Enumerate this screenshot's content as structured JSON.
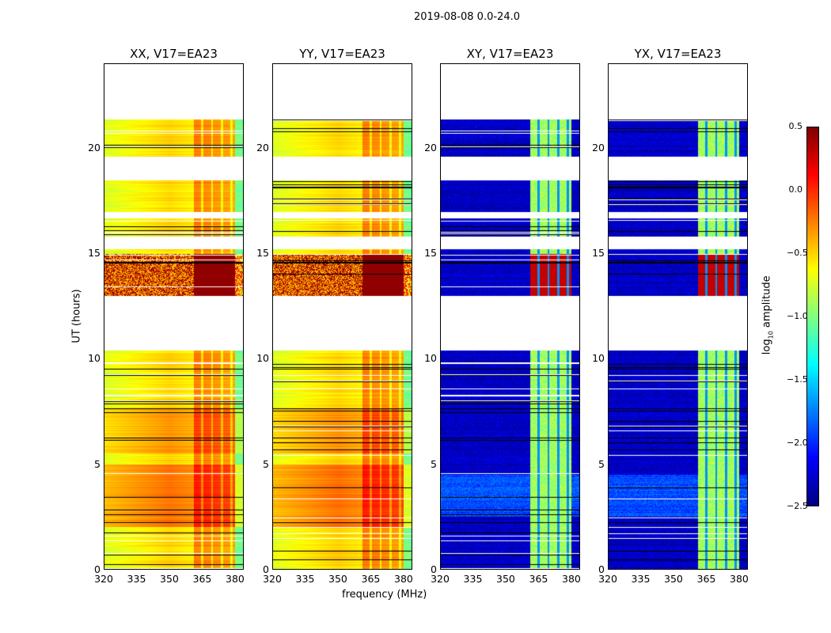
{
  "chart_data": {
    "type": "heatmap",
    "title": "2019-08-08 0.0-24.0",
    "xlabel": "frequency (MHz)",
    "ylabel": "UT (hours)",
    "xlim": [
      320,
      384
    ],
    "ylim": [
      0,
      24
    ],
    "xticks": [
      "320",
      "335",
      "350",
      "365",
      "380"
    ],
    "yticks": [
      "0",
      "5",
      "10",
      "15",
      "20"
    ],
    "panels": [
      {
        "title": "XX, V17=EA23",
        "kind": "parallel"
      },
      {
        "title": "YY, V17=EA23",
        "kind": "parallel"
      },
      {
        "title": "XY, V17=EA23",
        "kind": "cross"
      },
      {
        "title": "YX, V17=EA23",
        "kind": "cross"
      }
    ],
    "data_time_ranges_hours": [
      [
        0,
        10.4
      ],
      [
        13.0,
        15.2
      ],
      [
        15.8,
        16.7
      ],
      [
        17.0,
        18.5
      ],
      [
        19.6,
        21.4
      ]
    ],
    "rfi_band_mhz": [
      361,
      380
    ],
    "colorbar": {
      "label": "log10 amplitude",
      "colormap": "jet",
      "range": [
        -2.5,
        0.5
      ],
      "ticks": [
        "0.5",
        "0.0",
        "−0.5",
        "−1.0",
        "−1.5",
        "−2.0",
        "−2.5"
      ]
    }
  }
}
